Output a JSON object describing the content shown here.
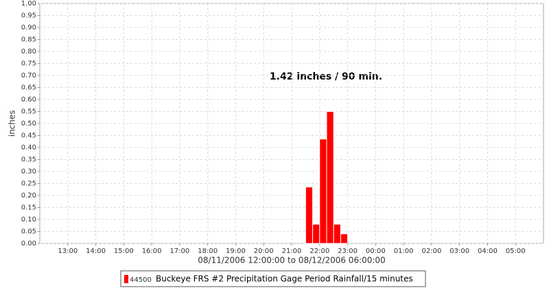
{
  "chart_data": {
    "type": "histogram",
    "annotation": "1.42 inches / 90 min.",
    "x_label": "08/11/2006 12:00:00 to 08/12/2006 06:00:00",
    "y_label": "inches",
    "legend_station": "44500",
    "bins": [
      21.5,
      21.75,
      22.0,
      22.25,
      22.5,
      22.75,
      23.0
    ],
    "series": [
      {
        "name": "Buckeye FRS #2 Precipitation Gage Period Rainfall/15 minutes",
        "color": "#ff0000",
        "values": [
          0.235,
          0.08,
          0.435,
          0.55,
          0.08,
          0.04
        ]
      }
    ],
    "xlim": [
      12,
      30
    ],
    "xticks": [
      {
        "value": 13,
        "label": "13:00"
      },
      {
        "value": 14,
        "label": "14:00"
      },
      {
        "value": 15,
        "label": "15:00"
      },
      {
        "value": 16,
        "label": "16:00"
      },
      {
        "value": 17,
        "label": "17:00"
      },
      {
        "value": 18,
        "label": "18:00"
      },
      {
        "value": 19,
        "label": "19:00"
      },
      {
        "value": 20,
        "label": "20:00"
      },
      {
        "value": 21,
        "label": "21:00"
      },
      {
        "value": 22,
        "label": "22:00"
      },
      {
        "value": 23,
        "label": "23:00"
      },
      {
        "value": 24,
        "label": "00:00"
      },
      {
        "value": 25,
        "label": "01:00"
      },
      {
        "value": 26,
        "label": "02:00"
      },
      {
        "value": 27,
        "label": "03:00"
      },
      {
        "value": 28,
        "label": "04:00"
      },
      {
        "value": 29,
        "label": "05:00"
      }
    ],
    "ylim": [
      0,
      1
    ],
    "yticks": [
      {
        "value": 0,
        "label": "0.00"
      },
      {
        "value": 0.05,
        "label": "0.05"
      },
      {
        "value": 0.1,
        "label": "0.10"
      },
      {
        "value": 0.15,
        "label": "0.15"
      },
      {
        "value": 0.2,
        "label": "0.20"
      },
      {
        "value": 0.25,
        "label": "0.25"
      },
      {
        "value": 0.3,
        "label": "0.30"
      },
      {
        "value": 0.35,
        "label": "0.35"
      },
      {
        "value": 0.4,
        "label": "0.40"
      },
      {
        "value": 0.45,
        "label": "0.45"
      },
      {
        "value": 0.5,
        "label": "0.50"
      },
      {
        "value": 0.55,
        "label": "0.55"
      },
      {
        "value": 0.6,
        "label": "0.60"
      },
      {
        "value": 0.65,
        "label": "0.65"
      },
      {
        "value": 0.7,
        "label": "0.70"
      },
      {
        "value": 0.75,
        "label": "0.75"
      },
      {
        "value": 0.8,
        "label": "0.80"
      },
      {
        "value": 0.85,
        "label": "0.85"
      },
      {
        "value": 0.9,
        "label": "0.90"
      },
      {
        "value": 0.95,
        "label": "0.95"
      },
      {
        "value": 1,
        "label": "1.00"
      }
    ],
    "grid": true
  }
}
